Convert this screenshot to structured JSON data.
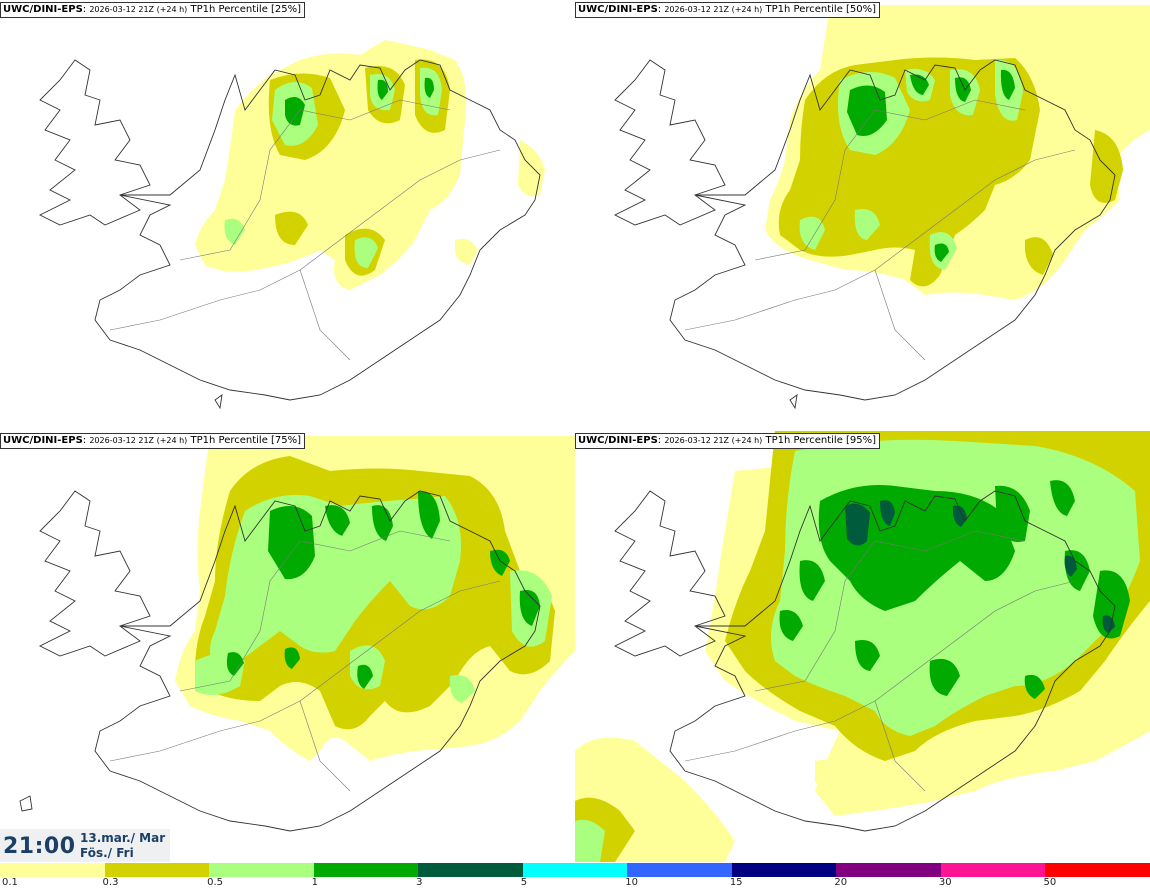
{
  "panels": [
    {
      "source": "UWC/DINI-EPS",
      "run": "2026-03-12 21Z (+24 h)",
      "field": "TP1h Percentile [25%]"
    },
    {
      "source": "UWC/DINI-EPS",
      "run": "2026-03-12 21Z (+24 h)",
      "field": "TP1h Percentile [50%]"
    },
    {
      "source": "UWC/DINI-EPS",
      "run": "2026-03-12 21Z (+24 h)",
      "field": "TP1h Percentile [75%]"
    },
    {
      "source": "UWC/DINI-EPS",
      "run": "2026-03-12 21Z (+24 h)",
      "field": "TP1h Percentile [95%]"
    }
  ],
  "valid_time": {
    "time": "21:00",
    "date": "13.mar./ Mar",
    "weekday": "Fös./ Fri"
  },
  "legend": {
    "colors": [
      "#ffff99",
      "#d2d200",
      "#aaff7f",
      "#00aa00",
      "#005a3c",
      "#00ffff",
      "#3366ff",
      "#000080",
      "#800080",
      "#ff1493",
      "#ff0000"
    ],
    "labels": [
      "0.1",
      "0.3",
      "0.5",
      "1",
      "3",
      "5",
      "10",
      "15",
      "20",
      "30",
      "50"
    ]
  }
}
